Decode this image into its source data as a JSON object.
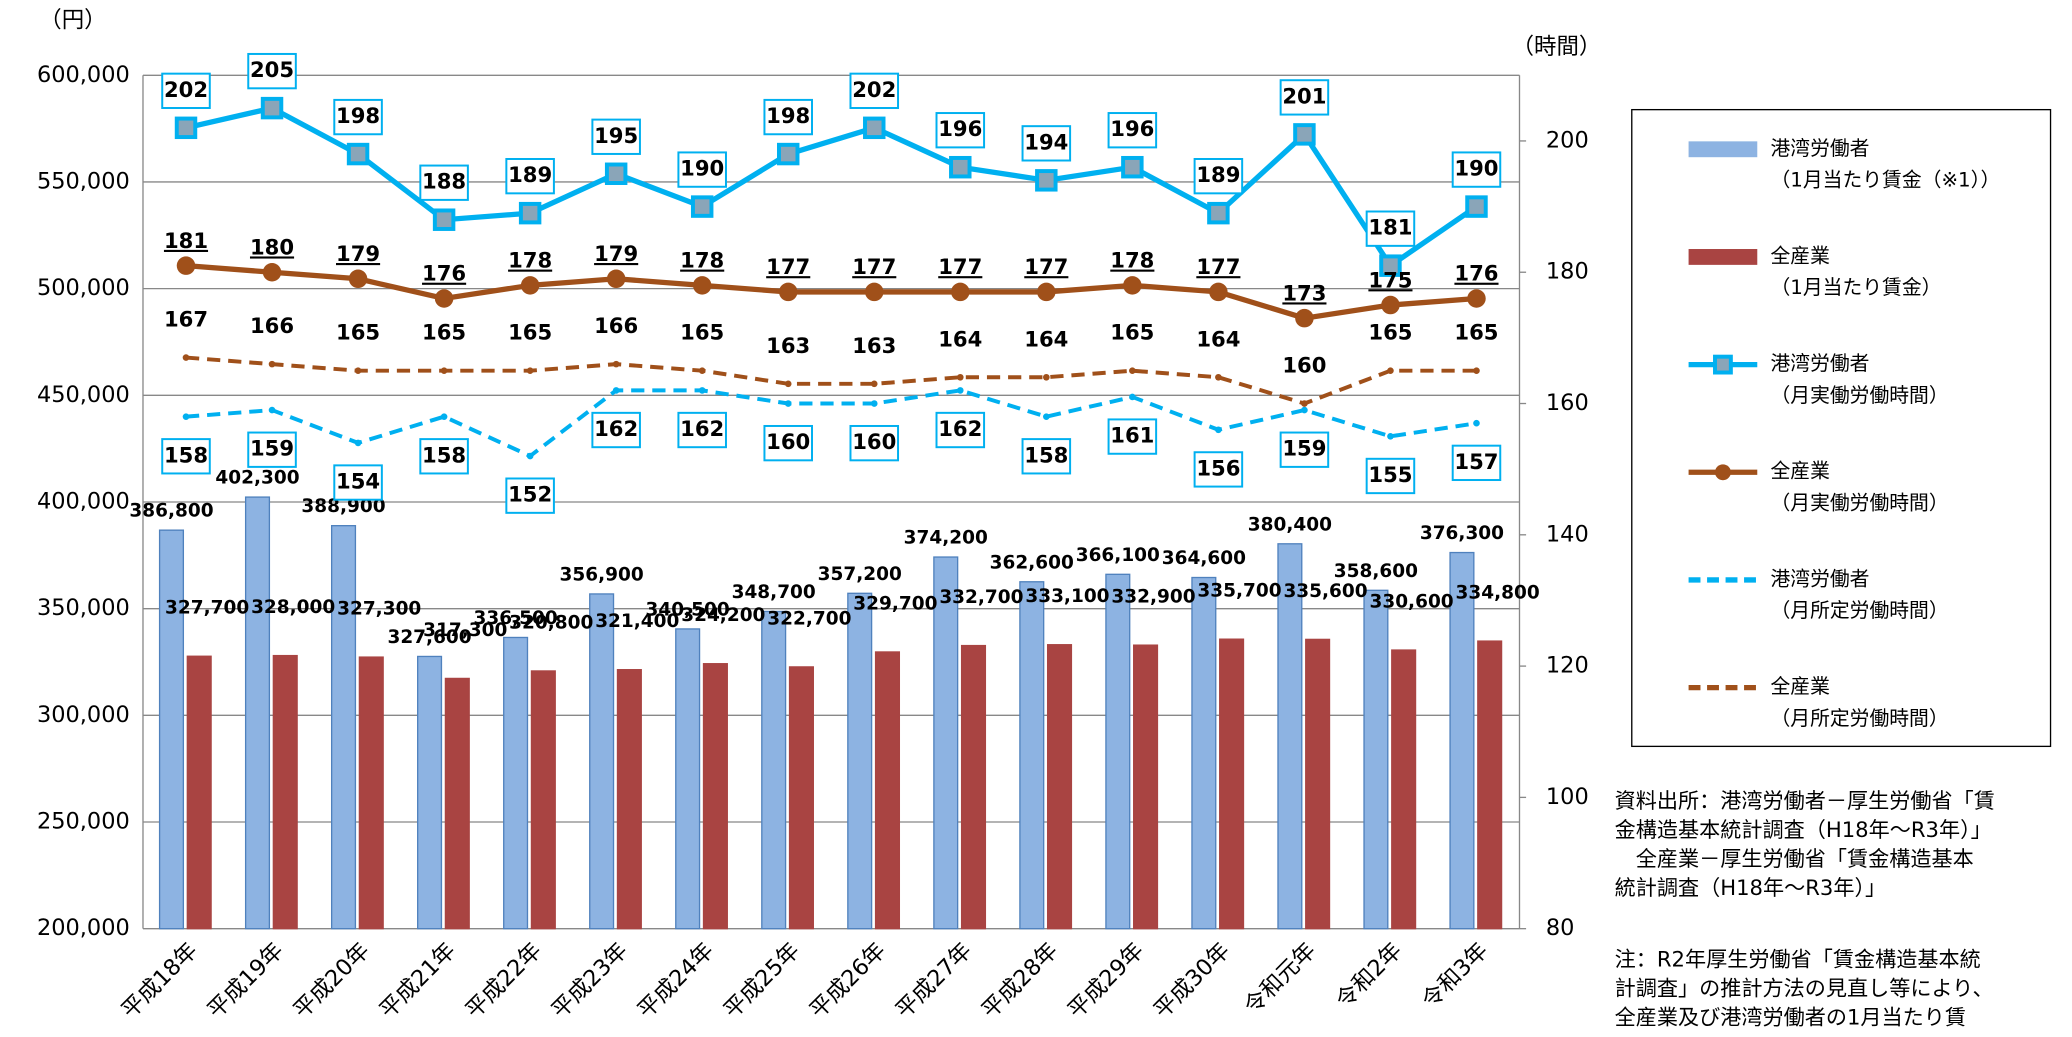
{
  "chart_data": {
    "type": "combo",
    "ylabel": "（円）",
    "y2label": "（時間）",
    "categories": [
      "平成18年",
      "平成19年",
      "平成20年",
      "平成21年",
      "平成22年",
      "平成23年",
      "平成24年",
      "平成25年",
      "平成26年",
      "平成27年",
      "平成28年",
      "平成29年",
      "平成30年",
      "令和元年",
      "令和2年",
      "令和3年"
    ],
    "ylim": [
      200000,
      600000
    ],
    "yticks": [
      {
        "value": 200000,
        "label": "200,000"
      },
      {
        "value": 250000,
        "label": "250,000"
      },
      {
        "value": 300000,
        "label": "300,000"
      },
      {
        "value": 350000,
        "label": "350,000"
      },
      {
        "value": 400000,
        "label": "400,000"
      },
      {
        "value": 450000,
        "label": "450,000"
      },
      {
        "value": 500000,
        "label": "500,000"
      },
      {
        "value": 550000,
        "label": "550,000"
      },
      {
        "value": 600000,
        "label": "600,000"
      }
    ],
    "y2lim": [
      80,
      210
    ],
    "y2ticks": [
      80,
      100,
      120,
      140,
      160,
      180,
      200
    ],
    "grid": true,
    "series": [
      {
        "name": "港湾労働者",
        "legend_note": "（1月当たり賃金（※1））",
        "type": "bar",
        "color": "#8db3e2",
        "edge": "#4f81bd",
        "label_color": "#31859c",
        "values": [
          386800,
          402300,
          388900,
          327600,
          336500,
          356900,
          340500,
          348700,
          357200,
          374200,
          362600,
          366100,
          364600,
          380400,
          358600,
          376300
        ],
        "value_labels": [
          "386,800",
          "402,300",
          "388,900",
          "327,600",
          "336,500",
          "356,900",
          "340,500",
          "348,700",
          "357,200",
          "374,200",
          "362,600",
          "366,100",
          "364,600",
          "380,400",
          "358,600",
          "376,300"
        ]
      },
      {
        "name": "全産業",
        "legend_note": "（1月当たり賃金）",
        "type": "bar",
        "color": "#a94442",
        "edge": "#a94442",
        "label_color": "#b35c1a",
        "values": [
          327700,
          328000,
          327300,
          317300,
          320800,
          321400,
          324200,
          322700,
          329700,
          332700,
          333100,
          332900,
          335700,
          335600,
          330600,
          334800
        ],
        "value_labels": [
          "327,700",
          "328,000",
          "327,300",
          "317,300",
          "320,800",
          "321,400",
          "324,200",
          "322,700",
          "329,700",
          "332,700",
          "333,100",
          "332,900",
          "335,700",
          "335,600",
          "330,600",
          "334,800"
        ]
      },
      {
        "name": "港湾労働者",
        "legend_note": "（月実働労働時間）",
        "type": "line",
        "axis": "y2",
        "color": "#00b0f0",
        "marker": "square",
        "dashed": false,
        "label_color": "#1f6fb5",
        "values": [
          202,
          205,
          198,
          188,
          189,
          195,
          190,
          198,
          202,
          196,
          194,
          196,
          189,
          201,
          181,
          190
        ]
      },
      {
        "name": "全産業",
        "legend_note": "（月実働労働時間）",
        "type": "line",
        "axis": "y2",
        "color": "#a0501a",
        "marker": "circle",
        "dashed": false,
        "label_color": "#c0392b",
        "values": [
          181,
          180,
          179,
          176,
          178,
          179,
          178,
          177,
          177,
          177,
          177,
          178,
          177,
          173,
          175,
          176
        ]
      },
      {
        "name": "港湾労働者",
        "legend_note": "（月所定労働時間）",
        "type": "line",
        "axis": "y2",
        "color": "#00b0f0",
        "marker": "none",
        "dashed": true,
        "label_color": "#5b8fd0",
        "values": [
          158,
          159,
          154,
          158,
          152,
          162,
          162,
          160,
          160,
          162,
          158,
          161,
          156,
          159,
          155,
          157
        ]
      },
      {
        "name": "全産業",
        "legend_note": "（月所定労働時間）",
        "type": "line",
        "axis": "y2",
        "color": "#a0501a",
        "marker": "none",
        "dashed": true,
        "label_color": "#e07020",
        "values": [
          167,
          166,
          165,
          165,
          165,
          166,
          165,
          163,
          163,
          164,
          164,
          165,
          164,
          160,
          165,
          165
        ]
      }
    ],
    "notes": [
      "資料出所：港湾労働者－厚生労働省「賃",
      "金構造基本統計調査（H18年～R3年）」",
      "　全産業－厚生労働省「賃金構造基本",
      "統計調査（H18年～R3年）」",
      "注：R2年厚生労働省「賃金構造基本統",
      "計調査」の推計方法の見直し等により、",
      "全産業及び港湾労働者の1月当たり賃"
    ]
  }
}
